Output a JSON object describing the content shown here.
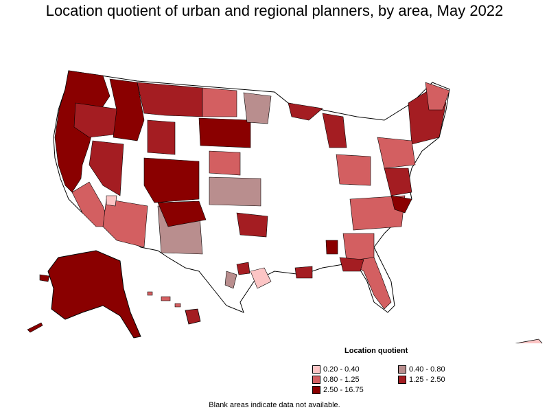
{
  "title": "Location quotient of urban and regional planners, by area, May 2022",
  "legend": {
    "title": "Location quotient",
    "items": [
      {
        "label": "0.20 - 0.40",
        "color": "#fcc5c5"
      },
      {
        "label": "0.40 - 0.80",
        "color": "#b98e8e"
      },
      {
        "label": "0.80 - 1.25",
        "color": "#d35f61"
      },
      {
        "label": "1.25 - 2.50",
        "color": "#a41d22"
      },
      {
        "label": "2.50 - 16.75",
        "color": "#8a0000"
      }
    ]
  },
  "note": "Blank areas indicate data not available.",
  "map": {
    "regions": [
      "contiguous-us",
      "alaska",
      "hawaii",
      "puerto-rico"
    ],
    "blank_color": "#ffffff",
    "boundary_color": "#000000"
  }
}
